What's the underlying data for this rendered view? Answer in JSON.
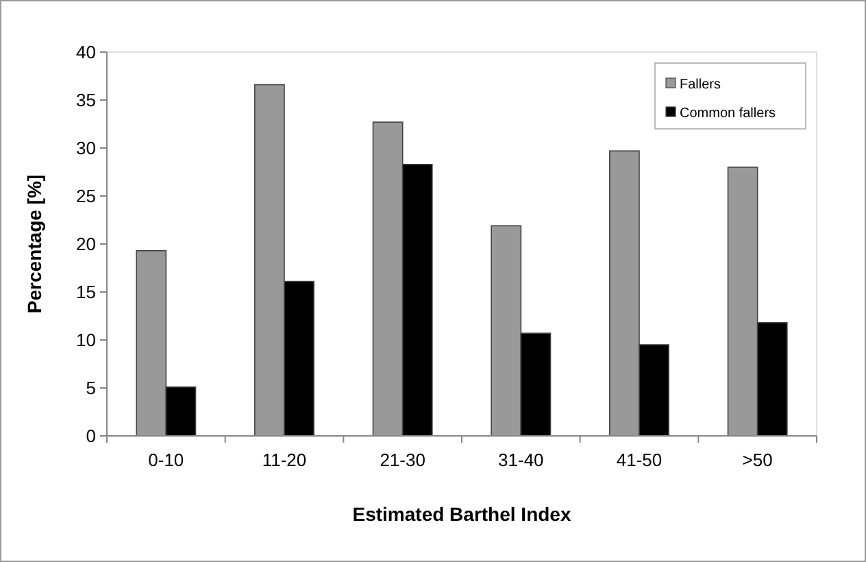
{
  "chart_data": {
    "type": "bar",
    "xlabel": "Estimated Barthel Index",
    "ylabel": "Percentage [%]",
    "categories": [
      "0-10",
      "11-20",
      "21-30",
      "31-40",
      "41-50",
      ">50"
    ],
    "series": [
      {
        "name": "Fallers",
        "color": "#999999",
        "values": [
          19.3,
          36.6,
          32.7,
          21.9,
          29.7,
          28.0
        ]
      },
      {
        "name": "Common fallers",
        "color": "#000000",
        "values": [
          5.1,
          16.1,
          28.3,
          10.7,
          9.5,
          11.8
        ]
      }
    ],
    "ylim": [
      0,
      40
    ],
    "yticks": [
      0,
      5,
      10,
      15,
      20,
      25,
      30,
      35,
      40
    ],
    "grid": false,
    "legend": "top right"
  }
}
